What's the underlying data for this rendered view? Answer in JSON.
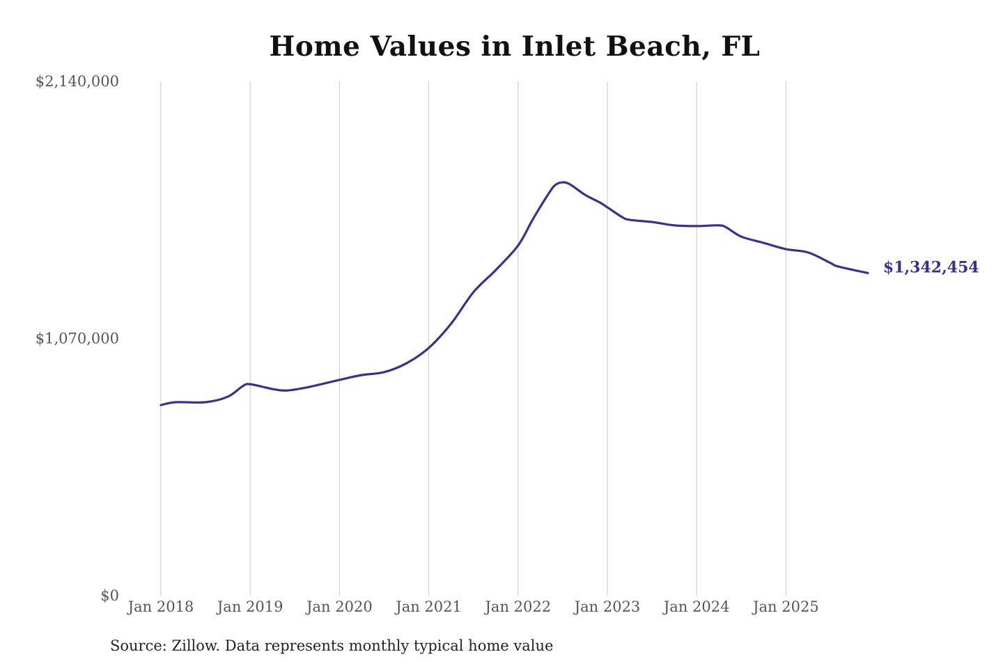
{
  "chart_data": {
    "type": "line",
    "title": "Home Values in Inlet Beach, FL",
    "source": "Source: Zillow. Data represents monthly typical home value",
    "xlabel": "",
    "ylabel": "",
    "ylim": [
      0,
      2140000
    ],
    "yticks": [
      0,
      1070000,
      2140000
    ],
    "ytick_labels": [
      "$0",
      "$1,070,000",
      "$2,140,000"
    ],
    "xticks": [
      "2018-01",
      "2019-01",
      "2020-01",
      "2021-01",
      "2022-01",
      "2023-01",
      "2024-01",
      "2025-01"
    ],
    "xtick_labels": [
      "Jan 2018",
      "Jan 2019",
      "Jan 2020",
      "Jan 2021",
      "Jan 2022",
      "Jan 2023",
      "Jan 2024",
      "Jan 2025"
    ],
    "grid": "vertical",
    "line_color": "#3b2f94",
    "end_label": "$1,342,454",
    "series": [
      {
        "x": [
          "2018-01",
          "2018-03",
          "2018-07",
          "2018-10",
          "2018-12",
          "2019-01",
          "2019-04",
          "2019-06",
          "2019-09",
          "2020-01",
          "2020-04",
          "2020-07",
          "2020-10",
          "2021-01",
          "2021-04",
          "2021-07",
          "2021-10",
          "2022-01",
          "2022-03",
          "2022-05",
          "2022-06",
          "2022-07",
          "2022-08",
          "2022-10",
          "2022-12",
          "2023-01",
          "2023-03",
          "2023-04",
          "2023-07",
          "2023-10",
          "2024-01",
          "2024-04",
          "2024-05",
          "2024-07",
          "2024-10",
          "2025-01",
          "2025-04",
          "2025-07",
          "2025-08",
          "2025-12"
        ],
        "values": [
          793000,
          805000,
          805000,
          828000,
          872000,
          880000,
          860000,
          854000,
          869000,
          898000,
          918000,
          930000,
          967000,
          1031000,
          1132000,
          1263000,
          1355000,
          1457000,
          1567000,
          1668000,
          1709000,
          1720000,
          1711000,
          1668000,
          1636000,
          1616000,
          1575000,
          1564000,
          1555000,
          1541000,
          1538000,
          1541000,
          1532000,
          1494000,
          1468000,
          1442000,
          1428000,
          1384000,
          1370000,
          1342454
        ]
      }
    ]
  }
}
